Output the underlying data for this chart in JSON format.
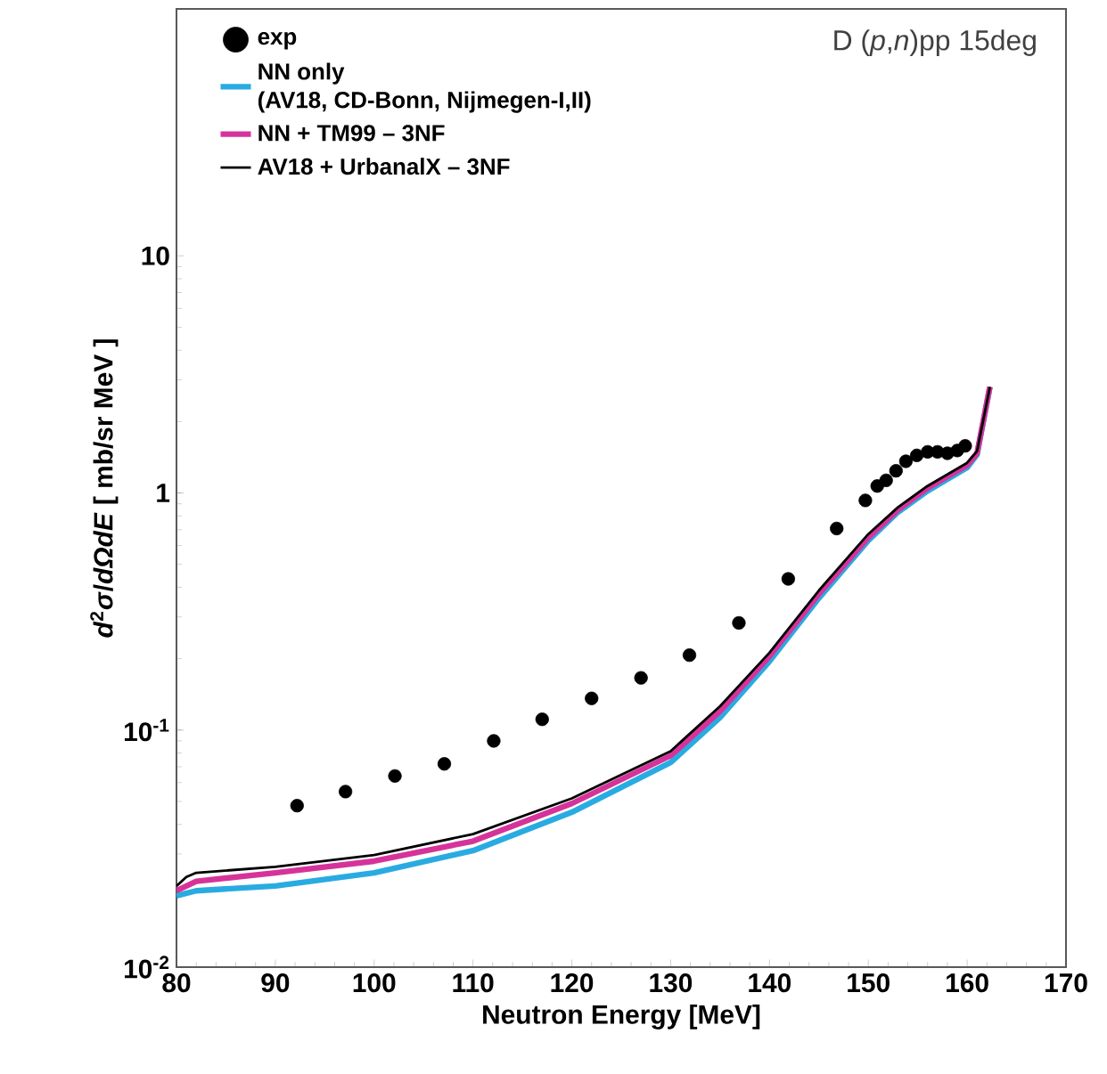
{
  "chart_data": {
    "type": "line",
    "xlabel": "Neutron Energy  [MeV]",
    "ylabel": "*d*$^{2}$*σ*/*dΩdE* [ mb/sr MeV ]",
    "annotations": [
      "D (*p*,*n*)pp  15deg"
    ],
    "log": "y",
    "xlim": [
      80,
      170
    ],
    "ylim": [
      0.01,
      110
    ],
    "xticks": [
      80,
      90,
      100,
      110,
      120,
      130,
      140,
      150,
      160,
      170
    ],
    "yticks": [
      {
        "value": 0.01,
        "label": "10$^{-2}$"
      },
      {
        "value": 0.1,
        "label": "10$^{-1}$"
      },
      {
        "value": 1,
        "label": "1"
      },
      {
        "value": 10,
        "label": "10"
      }
    ],
    "legend": "top left",
    "series": [
      {
        "name": "exp",
        "type": "scatter",
        "marker": "circle",
        "color": "#000000",
        "x": [
          92.2,
          97.1,
          102.1,
          107.1,
          112.1,
          117.0,
          122.0,
          127.0,
          131.9,
          136.9,
          141.9,
          146.8,
          149.7,
          150.9,
          151.8,
          152.8,
          153.8,
          154.9,
          156.0,
          157.0,
          158.0,
          159.0,
          159.8
        ],
        "values": [
          0.048,
          0.055,
          0.064,
          0.072,
          0.09,
          0.111,
          0.136,
          0.166,
          0.207,
          0.283,
          0.434,
          0.708,
          0.93,
          1.07,
          1.13,
          1.24,
          1.36,
          1.44,
          1.49,
          1.49,
          1.47,
          1.51,
          1.58
        ]
      },
      {
        "name": "NN only\n(AV18, CD-Bonn, Nijmegen-I,II)",
        "color": "#29abe2",
        "x": [
          80,
          82,
          90,
          100,
          110,
          120,
          130,
          135,
          140,
          145,
          150,
          153,
          156,
          160,
          161,
          162.3
        ],
        "values": [
          0.02,
          0.021,
          0.022,
          0.025,
          0.031,
          0.045,
          0.073,
          0.113,
          0.195,
          0.36,
          0.63,
          0.83,
          1.02,
          1.28,
          1.45,
          2.8
        ]
      },
      {
        "name": "NN + TM99 – 3NF",
        "color": "#d6339a",
        "x": [
          80,
          82,
          90,
          100,
          110,
          120,
          130,
          135,
          140,
          145,
          150,
          153,
          156,
          160,
          161,
          162.3
        ],
        "values": [
          0.021,
          0.023,
          0.025,
          0.028,
          0.034,
          0.049,
          0.078,
          0.12,
          0.205,
          0.375,
          0.65,
          0.85,
          1.05,
          1.31,
          1.47,
          2.8
        ]
      },
      {
        "name": "AV18  + UrbanalX – 3NF",
        "color": "#000000",
        "x": [
          80,
          81,
          82,
          90,
          100,
          110,
          120,
          130,
          135,
          140,
          145,
          150,
          153,
          156,
          160,
          161,
          162.3
        ],
        "values": [
          0.022,
          0.024,
          0.025,
          0.0265,
          0.0297,
          0.0364,
          0.0515,
          0.0815,
          0.126,
          0.212,
          0.388,
          0.671,
          0.87,
          1.07,
          1.34,
          1.5,
          2.8
        ]
      }
    ]
  }
}
